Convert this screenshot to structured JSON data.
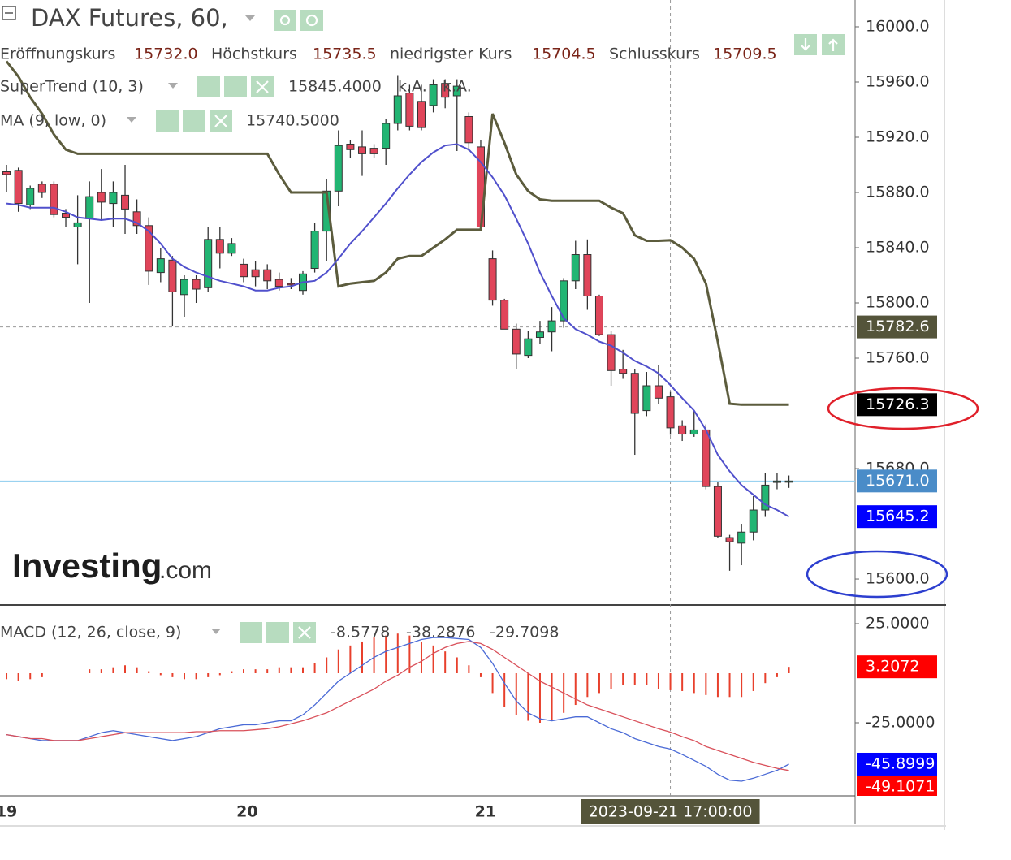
{
  "chart_data": [
    {
      "type": "candlestick",
      "title": "DAX Futures, 60,",
      "ohlc_legend": [
        [
          "Eröffnungskurs",
          "15732.0"
        ],
        [
          "Höchstkurs",
          "15735.5"
        ],
        [
          "niedrigster Kurs",
          "15704.5"
        ],
        [
          "Schlusskurs",
          "15709.5"
        ]
      ],
      "x": [
        0,
        1,
        2,
        3,
        4,
        5,
        6,
        7,
        8,
        9,
        10,
        11,
        12,
        13,
        14,
        15,
        16,
        17,
        18,
        19,
        20,
        21,
        22,
        23,
        24,
        25,
        26,
        27,
        28,
        29,
        30,
        31,
        32,
        33,
        34,
        35,
        36,
        37,
        38,
        39,
        40,
        41,
        42,
        43,
        44,
        45,
        46,
        47,
        48,
        49,
        50,
        51,
        52,
        53,
        54,
        55,
        56,
        57,
        58,
        59,
        60,
        61,
        62,
        63,
        64,
        65,
        66
      ],
      "xlim": [
        -0.55,
        71.58
      ],
      "xticks": [
        {
          "value": 0,
          "label": "19"
        },
        {
          "value": 20.3,
          "label": "20"
        },
        {
          "value": 40.4,
          "label": "21"
        }
      ],
      "ylim": [
        15581.2,
        16019.4
      ],
      "yticks": [
        {
          "value": 16000,
          "label": "16000.0"
        },
        {
          "value": 15960,
          "label": "15960.0"
        },
        {
          "value": 15920,
          "label": "15920.0"
        },
        {
          "value": 15880,
          "label": "15880.0"
        },
        {
          "value": 15840,
          "label": "15840.0"
        },
        {
          "value": 15800,
          "label": "15800.0"
        },
        {
          "value": 15760,
          "label": "15760.0"
        },
        {
          "value": 15680,
          "label": "15680.0"
        },
        {
          "value": 15600,
          "label": "15600.0"
        }
      ],
      "up_color": "#22b573",
      "down_color": "#e0455a",
      "open": [
        15895,
        15896,
        15871,
        15886,
        15886,
        15865,
        15855,
        15861,
        15880,
        15872,
        15878,
        15866,
        15856,
        15822,
        15831,
        15806,
        15817,
        15811,
        15846,
        15836,
        15828,
        15824,
        15824,
        15817,
        15814,
        15809,
        15825,
        15852,
        15881,
        15915,
        15913,
        15912,
        15912,
        15930,
        15952,
        15946,
        15943,
        15959,
        15950,
        15935,
        15913,
        15832,
        15802,
        15781,
        15762,
        15775,
        15779,
        15787,
        15816,
        15835,
        15805,
        15777,
        15752,
        15749,
        15722,
        15740,
        15732,
        15711,
        15705,
        15708,
        15667,
        15630,
        15626,
        15634,
        15650,
        15670,
        15671
      ],
      "high": [
        15900,
        15898,
        15885,
        15888,
        15888,
        15868,
        15878,
        15888,
        15897,
        15888,
        15900,
        15875,
        15862,
        15840,
        15834,
        15820,
        15820,
        15855,
        15855,
        15847,
        15832,
        15830,
        15828,
        15822,
        15818,
        15823,
        15858,
        15890,
        15925,
        15918,
        15925,
        15915,
        15933,
        15965,
        15958,
        15958,
        15962,
        15962,
        15962,
        15938,
        15918,
        15838,
        15803,
        15785,
        15780,
        15787,
        15797,
        15818,
        15845,
        15846,
        15806,
        15780,
        15766,
        15752,
        15750,
        15755,
        15735.5,
        15715,
        15722,
        15712,
        15670,
        15632,
        15640,
        15660,
        15677,
        15677,
        15675
      ],
      "low": [
        15880,
        15866,
        15868,
        15876,
        15862,
        15855,
        15828,
        15800,
        15860,
        15855,
        15850,
        15850,
        15813,
        15815,
        15783,
        15790,
        15800,
        15808,
        15825,
        15834,
        15815,
        15812,
        15810,
        15809,
        15810,
        15806,
        15822,
        15830,
        15870,
        15905,
        15892,
        15905,
        15900,
        15925,
        15925,
        15925,
        15938,
        15941,
        15910,
        15910,
        15852,
        15798,
        15781,
        15752,
        15760,
        15770,
        15765,
        15782,
        15810,
        15795,
        15776,
        15740,
        15745,
        15690,
        15718,
        15727,
        15704.5,
        15700,
        15703,
        15665,
        15630,
        15606,
        15610,
        15628,
        15645,
        15665,
        15666
      ],
      "close": [
        15893,
        15872,
        15883,
        15880,
        15864,
        15862,
        15858,
        15877,
        15873,
        15880,
        15868,
        15856,
        15823,
        15832,
        15808,
        15817,
        15810,
        15846,
        15836,
        15843,
        15819,
        15819,
        15816,
        15812,
        15813,
        15821,
        15852,
        15881,
        15914,
        15911,
        15908,
        15908,
        15930,
        15950,
        15928,
        15927,
        15958,
        15949,
        15957,
        15916,
        15855,
        15802,
        15781,
        15763,
        15774,
        15779,
        15787,
        15816,
        15835,
        15805,
        15777,
        15751,
        15749,
        15720,
        15740,
        15731,
        15709.5,
        15705,
        15708,
        15667,
        15631,
        15627,
        15634,
        15650,
        15668,
        15671,
        15671
      ],
      "last_close_label": "15671.0",
      "last_close_color": "#4a8cc8",
      "price_line_color": "#8ccbee",
      "series": [
        {
          "name": "SuperTrend (10, 3)",
          "color": "#5c5c3d",
          "tag_color": "#000000",
          "legend_value": "15845.4000",
          "legend_extra": [
            "k.A.",
            "k.A."
          ],
          "values": [
            15975,
            15964,
            15949,
            15937,
            15922,
            15911,
            15908,
            15908,
            15908,
            15908,
            15908,
            15908,
            15908,
            15908,
            15908,
            15908,
            15908,
            15908,
            15908,
            15908,
            15908,
            15908,
            15908,
            15893,
            15880,
            15880,
            15880,
            15880,
            15812,
            15814,
            15815,
            15816,
            15822,
            15832,
            15834,
            15834,
            15840,
            15846,
            15853,
            15853,
            15853,
            15937,
            15916,
            15893,
            15881,
            15875,
            15874,
            15874,
            15874,
            15874,
            15874,
            15869,
            15865,
            15849,
            15845,
            15845,
            15845.4,
            15840,
            15832,
            15814,
            15772,
            15727,
            15726.3,
            15726.3,
            15726.3,
            15726.3,
            15726.3
          ]
        },
        {
          "name": "MA (9, low, 0)",
          "color": "#5050cc",
          "tag_color": "#0000ff",
          "legend_value": "15740.5000",
          "values": [
            15872,
            15871,
            15869,
            15869,
            15869,
            15866,
            15862,
            15861,
            15860,
            15861,
            15861,
            15858,
            15852,
            15843,
            15832,
            15826,
            15822,
            15819,
            15816,
            15814,
            15812,
            15809,
            15809,
            15811,
            15812,
            15815,
            15816,
            15822,
            15832,
            15843,
            15852,
            15862,
            15872,
            15883,
            15893,
            15902,
            15909,
            15914,
            15915,
            15911,
            15902,
            15891,
            15878,
            15861,
            15843,
            15822,
            15805,
            15789,
            15781,
            15777,
            15772,
            15769,
            15764,
            15758,
            15754,
            15749,
            15740.5,
            15731,
            15722,
            15708,
            15690,
            15678,
            15668,
            15661,
            15654,
            15650,
            15645.2
          ]
        }
      ],
      "crosshair": {
        "x": 56,
        "y": 15782.6,
        "label": "2023-09-21 17:00:00",
        "color": "#54543a"
      },
      "watermark": [
        "Investing",
        ".com"
      ]
    },
    {
      "type": "macd",
      "title": "MACD (12, 26, close, 9)",
      "ylim": [
        -61.89,
        34.43
      ],
      "yticks": [
        {
          "value": 25,
          "label": "25.0000"
        },
        {
          "value": -25,
          "label": "-25.0000"
        }
      ],
      "series": [
        {
          "style": "bars",
          "color": "#e8402c",
          "tag_color": "#ff0000",
          "legend_value": "-8.5778",
          "values": [
            -3,
            -4,
            -3,
            -2,
            0,
            0,
            0,
            2,
            2,
            3,
            4,
            3,
            1,
            -1,
            -2,
            -3,
            -3,
            -2,
            -1,
            1,
            2,
            2,
            2,
            3,
            3,
            3,
            5,
            8,
            12,
            14,
            16,
            18,
            19,
            20,
            19,
            16,
            14,
            11,
            8,
            4,
            -2,
            -10,
            -17,
            -21,
            -24,
            -25,
            -24,
            -20,
            -16,
            -12,
            -10,
            -8,
            -6,
            -6,
            -6,
            -8,
            -8.5778,
            -9,
            -10,
            -11,
            -12,
            -12,
            -12,
            -9,
            -5,
            -2,
            3.2072
          ]
        },
        {
          "style": "line",
          "color": "#4a6ad6",
          "tag_color": "#0000ff",
          "legend_value": "-38.2876",
          "values": [
            -31,
            -32,
            -33,
            -34,
            -34,
            -34,
            -34,
            -32,
            -30,
            -29,
            -30,
            -31,
            -32,
            -33,
            -34,
            -33,
            -32,
            -30,
            -28,
            -27,
            -26,
            -26,
            -25,
            -24,
            -24,
            -21,
            -16,
            -10,
            -4,
            0,
            4,
            8,
            11,
            13,
            15,
            17,
            18,
            18,
            17.5,
            17,
            13,
            5,
            -5,
            -14,
            -20,
            -23,
            -24,
            -23,
            -22,
            -22,
            -25,
            -28,
            -30,
            -33,
            -35,
            -37,
            -38.2876,
            -41,
            -44,
            -47,
            -51,
            -54,
            -54.5,
            -53,
            -51,
            -49,
            -45.8999
          ]
        },
        {
          "style": "line",
          "color": "#d9505a",
          "tag_color": "#ff0000",
          "legend_value": "-29.7098",
          "values": [
            -31,
            -32,
            -33,
            -33,
            -34,
            -34,
            -34,
            -33,
            -32,
            -31,
            -30,
            -30,
            -30,
            -30,
            -30,
            -30,
            -29.5,
            -29.5,
            -29,
            -29,
            -29,
            -28.5,
            -28,
            -27,
            -25.5,
            -24,
            -22,
            -20,
            -17,
            -14,
            -11,
            -8,
            -4,
            -1,
            3,
            6,
            10,
            13,
            15,
            16,
            15,
            12,
            8,
            4,
            0,
            -4,
            -7,
            -10,
            -13,
            -16,
            -18,
            -20,
            -22,
            -24,
            -26,
            -28,
            -29.7098,
            -32,
            -34,
            -37,
            -39,
            -41,
            -43,
            -45,
            -46.5,
            -48,
            -49.1071
          ]
        }
      ]
    }
  ]
}
